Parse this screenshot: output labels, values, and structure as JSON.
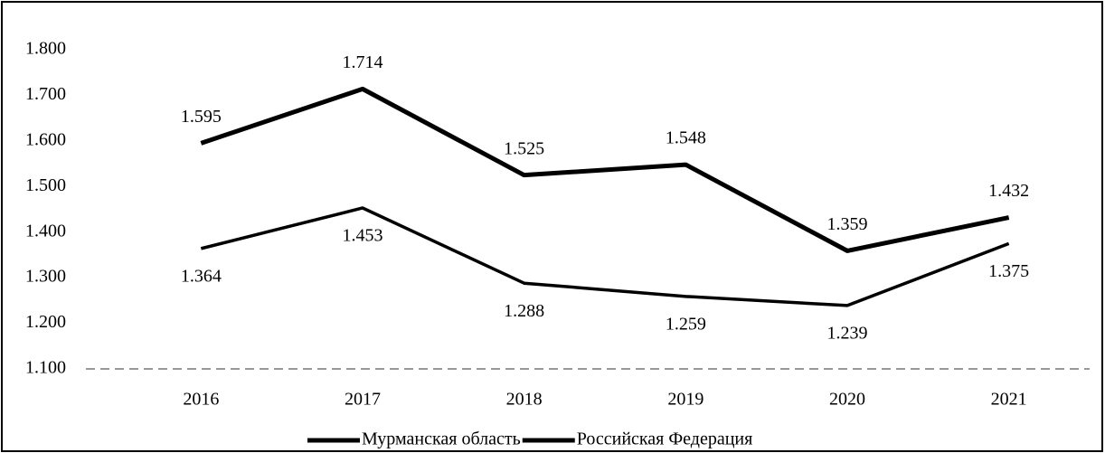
{
  "chart_data": {
    "type": "line",
    "categories": [
      "2016",
      "2017",
      "2018",
      "2019",
      "2020",
      "2021"
    ],
    "series": [
      {
        "name": "Мурманская область",
        "color": "#000000",
        "values": [
          1.595,
          1.714,
          1.525,
          1.548,
          1.359,
          1.432
        ]
      },
      {
        "name": "Российская Федерация",
        "color": "#000000",
        "values": [
          1.364,
          1.453,
          1.288,
          1.259,
          1.239,
          1.375
        ]
      }
    ],
    "ylim": [
      1.1,
      1.8
    ],
    "yticks": [
      {
        "value": 1.1,
        "label": "1.100"
      },
      {
        "value": 1.2,
        "label": "1.200"
      },
      {
        "value": 1.3,
        "label": "1.300"
      },
      {
        "value": 1.4,
        "label": "1.400"
      },
      {
        "value": 1.5,
        "label": "1.500"
      },
      {
        "value": 1.6,
        "label": "1.600"
      },
      {
        "value": 1.7,
        "label": "1.700"
      },
      {
        "value": 1.8,
        "label": "1.800"
      }
    ],
    "grid": false,
    "legend": "bottom"
  }
}
